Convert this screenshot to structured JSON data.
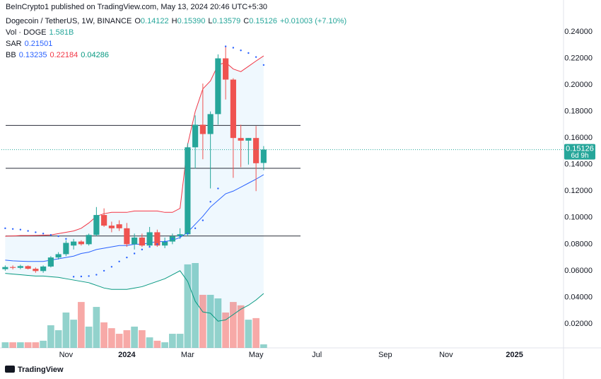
{
  "header": {
    "publisher": "BeInCrypto1 published on TradingView.com, May 13, 2024 20:46 UTC+5:30"
  },
  "footer": {
    "brand": "TradingView"
  },
  "chart_data": {
    "type": "candlestick",
    "title": "Dogecoin / TetherUS, 1W, BINANCE",
    "ohlc_legend": [
      {
        "key": "O",
        "text": "0.14122"
      },
      {
        "key": "H",
        "text": "0.15390"
      },
      {
        "key": "L",
        "text": "0.13579"
      },
      {
        "key": "C",
        "text": "0.15126"
      }
    ],
    "change": "+0.01003 (+7.10%)",
    "up_color": "#26a69a",
    "down_color": "#ef5350",
    "categories": [
      null,
      null,
      null,
      null,
      null,
      null,
      null,
      null,
      "Nov",
      null,
      null,
      null,
      null,
      null,
      null,
      null,
      "2024",
      null,
      null,
      null,
      null,
      null,
      null,
      null,
      "Mar",
      null,
      null,
      null,
      null,
      null,
      null,
      null,
      null,
      "May",
      null,
      null,
      null,
      null,
      null,
      null,
      null,
      "Jul",
      null,
      null,
      null,
      null,
      null,
      null,
      null,
      null,
      "Sep",
      null,
      null,
      null,
      null,
      null,
      null,
      null,
      "Nov",
      null,
      null,
      null,
      null,
      null,
      null,
      null,
      null,
      "2025",
      null,
      null,
      null,
      null,
      null,
      null
    ],
    "open": [
      0.0612,
      0.0628,
      0.0622,
      0.0635,
      0.0615,
      0.0598,
      0.0632,
      0.07,
      0.0725,
      0.079,
      0.082,
      0.08,
      0.087,
      0.102,
      0.094,
      0.095,
      0.092,
      0.08,
      0.085,
      0.079,
      0.089,
      0.079,
      0.082,
      0.086,
      0.0875,
      0.153,
      0.17,
      0.163,
      0.178,
      0.22,
      0.204,
      0.16,
      0.158,
      0.16,
      0.14122,
      null,
      null,
      null,
      null,
      null,
      null,
      null,
      null,
      null,
      null,
      null,
      null,
      null,
      null,
      null,
      null,
      null,
      null,
      null,
      null,
      null,
      null,
      null,
      null,
      null,
      null,
      null,
      null,
      null,
      null,
      null,
      null,
      null,
      null,
      null,
      null,
      null,
      null,
      null
    ],
    "high": [
      0.064,
      0.064,
      0.0645,
      0.064,
      0.0625,
      0.064,
      0.071,
      0.074,
      0.083,
      0.084,
      0.083,
      0.088,
      0.108,
      0.107,
      0.097,
      0.098,
      0.096,
      0.088,
      0.088,
      0.093,
      0.091,
      0.085,
      0.088,
      0.092,
      0.156,
      0.177,
      0.201,
      0.18,
      0.223,
      0.229,
      0.205,
      0.17,
      0.16,
      0.169,
      0.1539,
      null,
      null,
      null,
      null,
      null,
      null,
      null,
      null,
      null,
      null,
      null,
      null,
      null,
      null,
      null,
      null,
      null,
      null,
      null,
      null,
      null,
      null,
      null,
      null,
      null,
      null,
      null,
      null,
      null,
      null,
      null,
      null,
      null,
      null,
      null,
      null,
      null,
      null,
      null
    ],
    "low": [
      0.06,
      0.061,
      0.0612,
      0.061,
      0.0585,
      0.0585,
      0.0625,
      0.0685,
      0.071,
      0.076,
      0.079,
      0.079,
      0.086,
      0.093,
      0.089,
      0.09,
      0.078,
      0.076,
      0.078,
      0.078,
      0.078,
      0.077,
      0.08,
      0.084,
      0.086,
      0.137,
      0.144,
      0.122,
      0.17,
      0.189,
      0.13,
      0.138,
      0.14,
      0.12,
      0.13579,
      null,
      null,
      null,
      null,
      null,
      null,
      null,
      null,
      null,
      null,
      null,
      null,
      null,
      null,
      null,
      null,
      null,
      null,
      null,
      null,
      null,
      null,
      null,
      null,
      null,
      null,
      null,
      null,
      null,
      null,
      null,
      null,
      null,
      null,
      null,
      null,
      null,
      null,
      null
    ],
    "close": [
      0.0628,
      0.0622,
      0.0635,
      0.0615,
      0.0598,
      0.0632,
      0.07,
      0.0725,
      0.081,
      0.082,
      0.08,
      0.087,
      0.102,
      0.094,
      0.092,
      0.092,
      0.08,
      0.085,
      0.079,
      0.089,
      0.079,
      0.082,
      0.086,
      0.0875,
      0.153,
      0.17,
      0.163,
      0.178,
      0.22,
      0.204,
      0.16,
      0.158,
      0.16,
      0.141,
      0.15126,
      null,
      null,
      null,
      null,
      null,
      null,
      null,
      null,
      null,
      null,
      null,
      null,
      null,
      null,
      null,
      null,
      null,
      null,
      null,
      null,
      null,
      null,
      null,
      null,
      null,
      null,
      null,
      null,
      null,
      null,
      null,
      null,
      null,
      null,
      null,
      null,
      null,
      null,
      null
    ],
    "volume": [
      2.5,
      2.5,
      2.5,
      2.5,
      2.5,
      3.2,
      10.1,
      7.9,
      15.8,
      12.6,
      20.5,
      9.5,
      18.3,
      11.4,
      8.8,
      6.3,
      7.9,
      9.5,
      7.9,
      4.7,
      3.2,
      2.5,
      6.3,
      6.3,
      37.3,
      37.9,
      23.7,
      23.7,
      22.1,
      15.8,
      20.5,
      19.0,
      12.6,
      13.3,
      1.581,
      null,
      null,
      null,
      null,
      null,
      null,
      null,
      null,
      null,
      null,
      null,
      null,
      null,
      null,
      null,
      null,
      null,
      null,
      null,
      null,
      null,
      null,
      null,
      null,
      null,
      null,
      null,
      null,
      null,
      null,
      null,
      null,
      null,
      null,
      null,
      null,
      null,
      null,
      null
    ],
    "indicators": [
      {
        "name": "Vol · DOGE",
        "legend_values": [
          "1.581B"
        ],
        "legend_colors": [
          "#26a69a"
        ]
      },
      {
        "name": "SAR",
        "legend_values": [
          "0.21501"
        ],
        "legend_colors": [
          "#2962ff"
        ],
        "color": "#2962ff",
        "values": [
          0.092,
          0.0915,
          0.091,
          0.09,
          0.089,
          0.088,
          0.087,
          0.086,
          0.084,
          0.0555,
          0.0557,
          0.056,
          0.057,
          0.06,
          0.063,
          0.067,
          0.07,
          0.073,
          0.076,
          0.078,
          0.08,
          0.082,
          0.084,
          0.086,
          0.088,
          0.092,
          0.098,
          0.112,
          0.122,
          0.229,
          0.228,
          0.226,
          0.224,
          0.221,
          0.21501,
          null,
          null,
          null,
          null,
          null,
          null,
          null,
          null,
          null,
          null,
          null,
          null,
          null,
          null,
          null,
          null,
          null,
          null,
          null,
          null,
          null,
          null,
          null,
          null,
          null,
          null,
          null,
          null,
          null,
          null,
          null,
          null,
          null,
          null,
          null,
          null,
          null,
          null,
          null
        ]
      },
      {
        "name": "BB",
        "legend_values": [
          "0.13235",
          "0.22184",
          "0.04286"
        ],
        "legend_colors": [
          "#2962ff",
          "#f23645",
          "#089981"
        ],
        "fill": "rgba(33,150,243,0.07)",
        "basis": [
          0.068,
          0.0675,
          0.0672,
          0.067,
          0.067,
          0.067,
          0.068,
          0.069,
          0.07,
          0.071,
          0.073,
          0.074,
          0.076,
          0.077,
          0.078,
          0.079,
          0.079,
          0.08,
          0.08,
          0.081,
          0.082,
          0.082,
          0.083,
          0.085,
          0.089,
          0.095,
          0.101,
          0.108,
          0.113,
          0.118,
          0.12,
          0.123,
          0.126,
          0.129,
          0.13235,
          null,
          null,
          null,
          null,
          null,
          null,
          null,
          null,
          null,
          null,
          null,
          null,
          null,
          null,
          null,
          null,
          null,
          null,
          null,
          null,
          null,
          null,
          null,
          null,
          null,
          null,
          null,
          null,
          null,
          null,
          null,
          null,
          null,
          null,
          null,
          null,
          null,
          null,
          null
        ],
        "upper": [
          0.086,
          0.0862,
          0.0865,
          0.0865,
          0.0866,
          0.0868,
          0.087,
          0.088,
          0.089,
          0.09,
          0.092,
          0.096,
          0.101,
          0.103,
          0.104,
          0.104,
          0.104,
          0.105,
          0.105,
          0.105,
          0.105,
          0.104,
          0.104,
          0.107,
          0.155,
          0.18,
          0.197,
          0.203,
          0.215,
          0.217,
          0.212,
          0.21,
          0.214,
          0.218,
          0.22184,
          null,
          null,
          null,
          null,
          null,
          null,
          null,
          null,
          null,
          null,
          null,
          null,
          null,
          null,
          null,
          null,
          null,
          null,
          null,
          null,
          null,
          null,
          null,
          null,
          null,
          null,
          null,
          null,
          null,
          null,
          null,
          null,
          null,
          null,
          null,
          null,
          null,
          null,
          null
        ],
        "lower": [
          0.058,
          0.0575,
          0.057,
          0.0565,
          0.056,
          0.056,
          0.0555,
          0.055,
          0.054,
          0.053,
          0.052,
          0.051,
          0.049,
          0.047,
          0.046,
          0.046,
          0.046,
          0.047,
          0.048,
          0.05,
          0.052,
          0.054,
          0.057,
          0.06,
          0.052,
          0.037,
          0.029,
          0.028,
          0.022,
          0.023,
          0.027,
          0.031,
          0.034,
          0.038,
          0.04286,
          null,
          null,
          null,
          null,
          null,
          null,
          null,
          null,
          null,
          null,
          null,
          null,
          null,
          null,
          null,
          null,
          null,
          null,
          null,
          null,
          null,
          null,
          null,
          null,
          null,
          null,
          null,
          null,
          null,
          null,
          null,
          null,
          null,
          null,
          null,
          null,
          null,
          null,
          null
        ]
      }
    ],
    "hlines": [
      0.1695,
      0.1372,
      0.0862
    ],
    "price_tag": {
      "price": "0.15126",
      "countdown": "6d 9h"
    },
    "ylim": [
      0.0019,
      0.2533
    ],
    "yticks": [
      {
        "value": 0.02,
        "label": "0.02000"
      },
      {
        "value": 0.04,
        "label": "0.04000"
      },
      {
        "value": 0.06,
        "label": "0.06000"
      },
      {
        "value": 0.08,
        "label": "0.08000"
      },
      {
        "value": 0.1,
        "label": "0.10000"
      },
      {
        "value": 0.12,
        "label": "0.12000"
      },
      {
        "value": 0.14,
        "label": "0.14000"
      },
      {
        "value": 0.16,
        "label": "0.16000"
      },
      {
        "value": 0.18,
        "label": "0.18000"
      },
      {
        "value": 0.2,
        "label": "0.20000"
      },
      {
        "value": 0.22,
        "label": "0.22000"
      },
      {
        "value": 0.24,
        "label": "0.24000"
      }
    ],
    "grid": false
  }
}
